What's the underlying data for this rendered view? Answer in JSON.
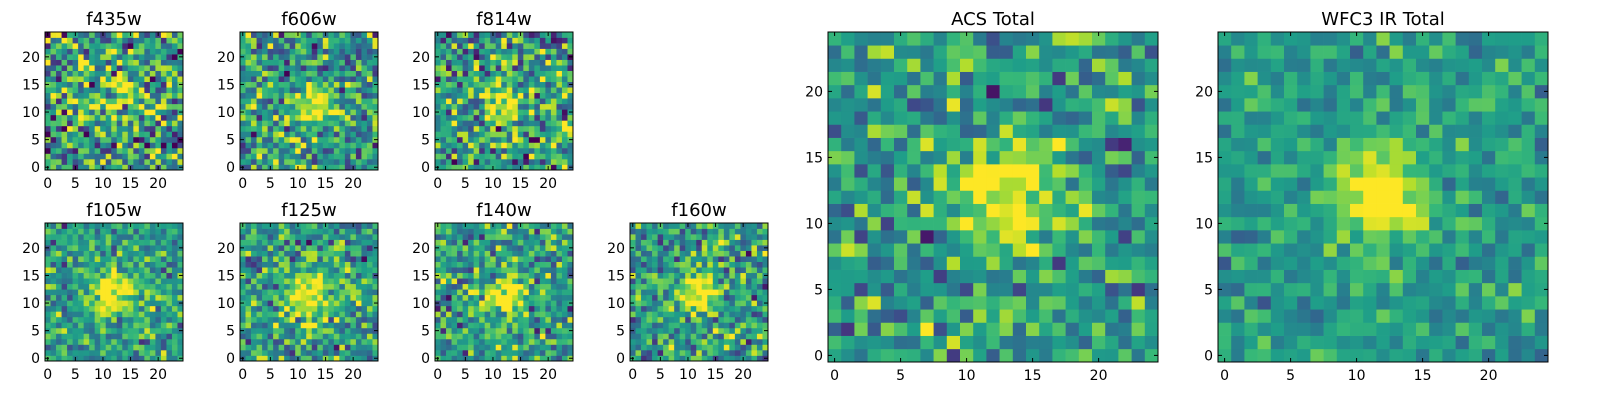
{
  "chart_data": [
    {
      "type": "heatmap",
      "title": "f435w",
      "nx": 25,
      "ny": 25,
      "xlim": [
        0,
        25
      ],
      "ylim": [
        0,
        25
      ],
      "xticks": [
        0,
        5,
        10,
        15,
        20
      ],
      "yticks": [
        0,
        5,
        10,
        15,
        20
      ],
      "colormap": "viridis",
      "source_center": [
        12,
        12
      ],
      "source_peak": 0.32,
      "source_sigma": 3.5,
      "noise_level": 0.55,
      "seed": 11
    },
    {
      "type": "heatmap",
      "title": "f606w",
      "nx": 25,
      "ny": 25,
      "xlim": [
        0,
        25
      ],
      "ylim": [
        0,
        25
      ],
      "xticks": [
        0,
        5,
        10,
        15,
        20
      ],
      "yticks": [
        0,
        5,
        10,
        15,
        20
      ],
      "colormap": "viridis",
      "source_center": [
        13,
        11
      ],
      "source_peak": 0.55,
      "source_sigma": 2.2,
      "noise_level": 0.45,
      "seed": 23
    },
    {
      "type": "heatmap",
      "title": "f814w",
      "nx": 25,
      "ny": 25,
      "xlim": [
        0,
        25
      ],
      "ylim": [
        0,
        25
      ],
      "xticks": [
        0,
        5,
        10,
        15,
        20
      ],
      "yticks": [
        0,
        5,
        10,
        15,
        20
      ],
      "colormap": "viridis",
      "source_center": [
        12,
        12
      ],
      "source_peak": 0.45,
      "source_sigma": 2.5,
      "noise_level": 0.5,
      "seed": 37
    },
    {
      "type": "heatmap",
      "title": "f105w",
      "nx": 25,
      "ny": 25,
      "xlim": [
        0,
        25
      ],
      "ylim": [
        0,
        25
      ],
      "xticks": [
        0,
        5,
        10,
        15,
        20
      ],
      "yticks": [
        0,
        5,
        10,
        15,
        20
      ],
      "colormap": "viridis",
      "source_center": [
        12,
        12
      ],
      "source_peak": 0.55,
      "source_sigma": 2.8,
      "noise_level": 0.35,
      "seed": 41
    },
    {
      "type": "heatmap",
      "title": "f125w",
      "nx": 25,
      "ny": 25,
      "xlim": [
        0,
        25
      ],
      "ylim": [
        0,
        25
      ],
      "xticks": [
        0,
        5,
        10,
        15,
        20
      ],
      "yticks": [
        0,
        5,
        10,
        15,
        20
      ],
      "colormap": "viridis",
      "source_center": [
        12,
        11
      ],
      "source_peak": 0.5,
      "source_sigma": 3.0,
      "noise_level": 0.38,
      "seed": 53
    },
    {
      "type": "heatmap",
      "title": "f140w",
      "nx": 25,
      "ny": 25,
      "xlim": [
        0,
        25
      ],
      "ylim": [
        0,
        25
      ],
      "xticks": [
        0,
        5,
        10,
        15,
        20
      ],
      "yticks": [
        0,
        5,
        10,
        15,
        20
      ],
      "colormap": "viridis",
      "source_center": [
        12,
        11
      ],
      "source_peak": 0.55,
      "source_sigma": 2.6,
      "noise_level": 0.4,
      "seed": 67
    },
    {
      "type": "heatmap",
      "title": "f160w",
      "nx": 25,
      "ny": 25,
      "xlim": [
        0,
        25
      ],
      "ylim": [
        0,
        25
      ],
      "xticks": [
        0,
        5,
        10,
        15,
        20
      ],
      "yticks": [
        0,
        5,
        10,
        15,
        20
      ],
      "colormap": "viridis",
      "source_center": [
        12,
        12
      ],
      "source_peak": 0.6,
      "source_sigma": 2.4,
      "noise_level": 0.4,
      "seed": 79
    },
    {
      "type": "heatmap",
      "title": "ACS Total",
      "nx": 25,
      "ny": 25,
      "xlim": [
        0,
        25
      ],
      "ylim": [
        0,
        25
      ],
      "xticks": [
        0,
        5,
        10,
        15,
        20
      ],
      "yticks": [
        0,
        5,
        10,
        15,
        20
      ],
      "colormap": "viridis",
      "source_center": [
        13,
        12
      ],
      "source_peak": 0.55,
      "source_sigma": 2.8,
      "noise_level": 0.35,
      "seed": 97
    },
    {
      "type": "heatmap",
      "title": "WFC3 IR Total",
      "nx": 25,
      "ny": 25,
      "xlim": [
        0,
        25
      ],
      "ylim": [
        0,
        25
      ],
      "xticks": [
        0,
        5,
        10,
        15,
        20
      ],
      "yticks": [
        0,
        5,
        10,
        15,
        20
      ],
      "colormap": "viridis",
      "source_center": [
        12,
        12
      ],
      "source_peak": 0.6,
      "source_sigma": 2.3,
      "noise_level": 0.22,
      "seed": 113
    }
  ]
}
